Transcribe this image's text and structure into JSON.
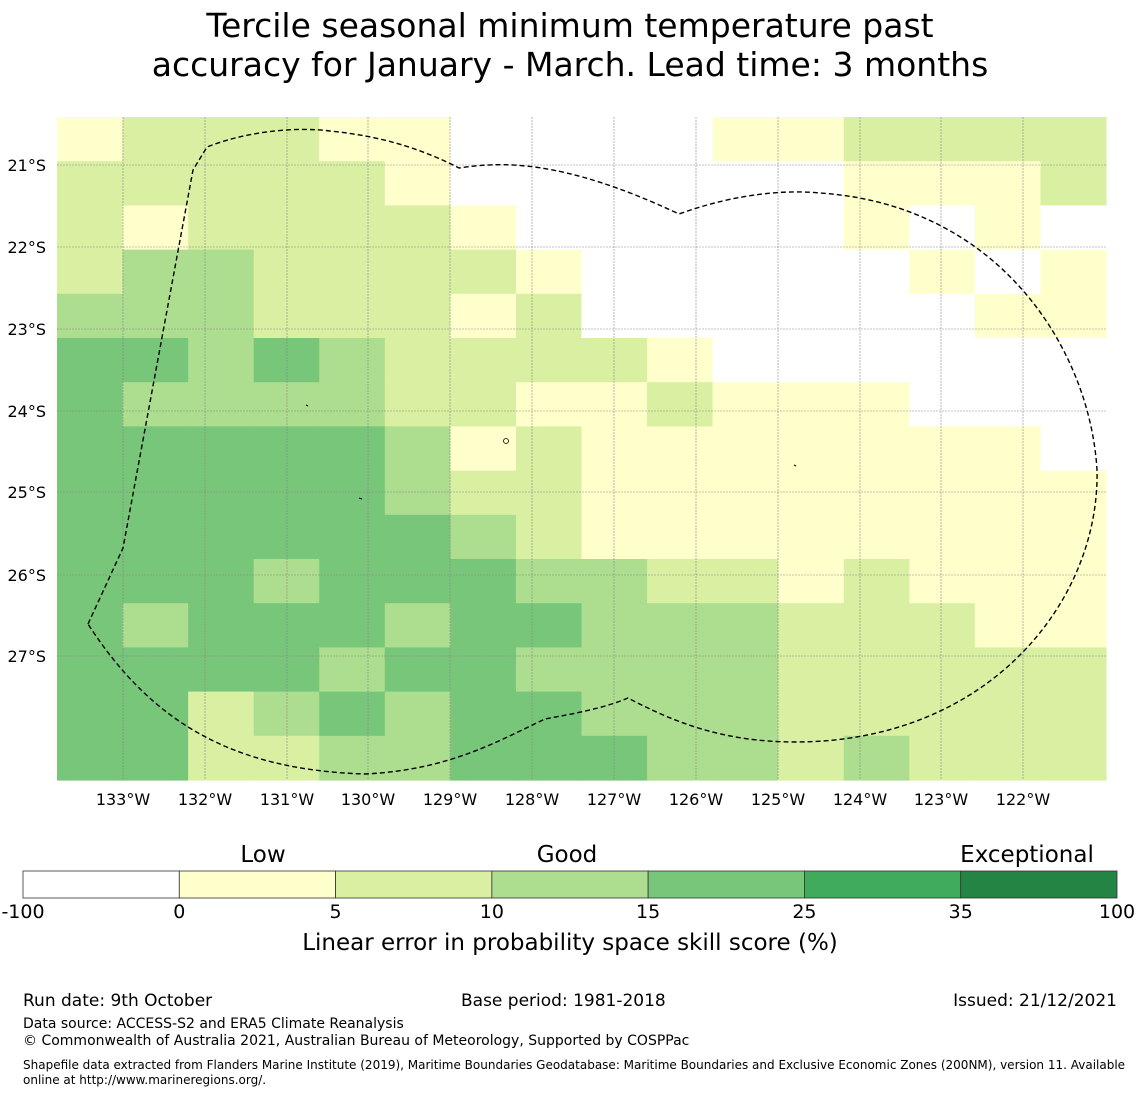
{
  "title": {
    "line1": "Tercile seasonal minimum temperature past",
    "line2": "accuracy for January - March. Lead time: 3 months"
  },
  "map": {
    "lon_labels": [
      "133°W",
      "132°W",
      "131°W",
      "130°W",
      "129°W",
      "128°W",
      "127°W",
      "126°W",
      "125°W",
      "124°W",
      "123°W",
      "122°W"
    ],
    "lat_labels": [
      "21°S",
      "22°S",
      "23°S",
      "24°S",
      "25°S",
      "26°S",
      "27°S"
    ],
    "grid_cols": 16,
    "grid_rows": 15,
    "grid_values_legend_bin_index": [
      [
        1,
        2,
        2,
        2,
        1,
        1,
        0,
        0,
        0,
        0,
        1,
        1,
        2,
        2,
        2,
        2
      ],
      [
        2,
        2,
        2,
        2,
        2,
        1,
        0,
        0,
        0,
        0,
        0,
        0,
        1,
        1,
        1,
        2
      ],
      [
        2,
        1,
        2,
        2,
        2,
        2,
        1,
        0,
        0,
        0,
        0,
        0,
        1,
        0,
        1,
        0
      ],
      [
        2,
        3,
        3,
        2,
        2,
        2,
        2,
        1,
        0,
        0,
        0,
        0,
        0,
        1,
        0,
        1
      ],
      [
        3,
        3,
        3,
        2,
        2,
        2,
        1,
        2,
        0,
        0,
        0,
        0,
        0,
        0,
        1,
        1
      ],
      [
        4,
        4,
        3,
        4,
        3,
        2,
        2,
        2,
        2,
        1,
        0,
        0,
        0,
        0,
        0,
        0
      ],
      [
        4,
        3,
        3,
        3,
        3,
        2,
        2,
        1,
        1,
        2,
        1,
        1,
        1,
        0,
        0,
        0
      ],
      [
        4,
        4,
        4,
        4,
        4,
        3,
        1,
        2,
        1,
        1,
        1,
        1,
        1,
        1,
        1,
        0
      ],
      [
        4,
        4,
        4,
        4,
        4,
        3,
        2,
        2,
        1,
        1,
        1,
        1,
        1,
        1,
        1,
        1
      ],
      [
        4,
        4,
        4,
        4,
        4,
        4,
        3,
        2,
        1,
        1,
        1,
        1,
        1,
        1,
        1,
        1
      ],
      [
        4,
        4,
        4,
        3,
        4,
        4,
        4,
        3,
        3,
        2,
        2,
        1,
        2,
        1,
        1,
        1
      ],
      [
        4,
        3,
        4,
        4,
        4,
        3,
        4,
        4,
        3,
        3,
        3,
        2,
        2,
        2,
        1,
        1
      ],
      [
        4,
        4,
        4,
        4,
        3,
        4,
        4,
        3,
        3,
        3,
        3,
        2,
        2,
        2,
        2,
        2
      ],
      [
        4,
        4,
        2,
        3,
        4,
        3,
        4,
        4,
        3,
        3,
        3,
        2,
        2,
        2,
        2,
        2
      ],
      [
        4,
        4,
        2,
        2,
        3,
        3,
        4,
        4,
        4,
        3,
        3,
        2,
        3,
        2,
        2,
        2
      ]
    ]
  },
  "legend": {
    "category_low": "Low",
    "category_good": "Good",
    "category_exceptional": "Exceptional",
    "ticks": [
      "-100",
      "0",
      "5",
      "10",
      "15",
      "25",
      "35",
      "100"
    ],
    "colors": [
      "#ffffff",
      "#ffffcc",
      "#d9f0a3",
      "#addd8e",
      "#78c679",
      "#41ab5d",
      "#238443"
    ],
    "label": "Linear error in probability space skill score (%)"
  },
  "footer": {
    "run_date": "Run date: 9th October",
    "base_period": "Base period: 1981-2018",
    "issued": "Issued: 21/12/2021",
    "data_source": "Data source: ACCESS-S2 and ERA5 Climate Reanalysis",
    "copyright": "© Commonwealth of Australia 2021, Australian Bureau of Meteorology, Supported by COSPPac",
    "shapefile": "Shapefile data extracted from Flanders Marine Institute (2019), Maritime Boundaries Geodatabase: Maritime Boundaries and Exclusive Economic Zones (200NM), version 11. Available online at http://www.marineregions.org/."
  }
}
